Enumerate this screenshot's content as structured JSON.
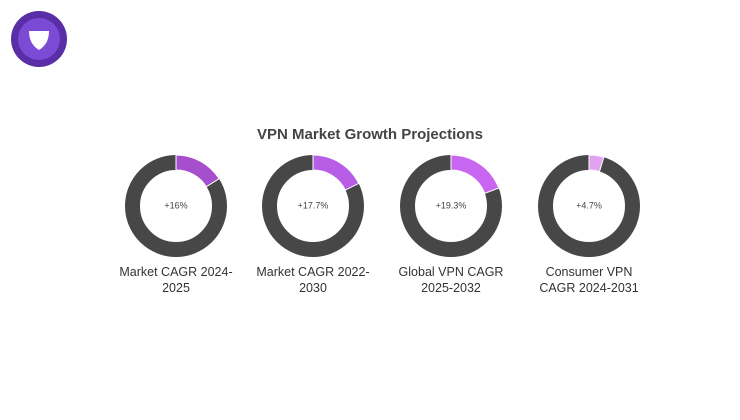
{
  "chart_data": {
    "type": "donut",
    "title": "VPN Market Growth Projections",
    "categories": [
      "Market CAGR 2024-2025",
      "Market CAGR 2022-2030",
      "Global VPN CAGR 2025-2032",
      "Consumer VPN CAGR 2024-2031"
    ],
    "values": [
      16,
      17.7,
      19.3,
      4.7
    ],
    "value_labels": [
      "+16%",
      "+17.7%",
      "+19.3%",
      "+4.7%"
    ],
    "colors": [
      "#a64fcc",
      "#b85ee6",
      "#c866f2",
      "#e0a3f2"
    ],
    "ring_color": "#474747"
  }
}
